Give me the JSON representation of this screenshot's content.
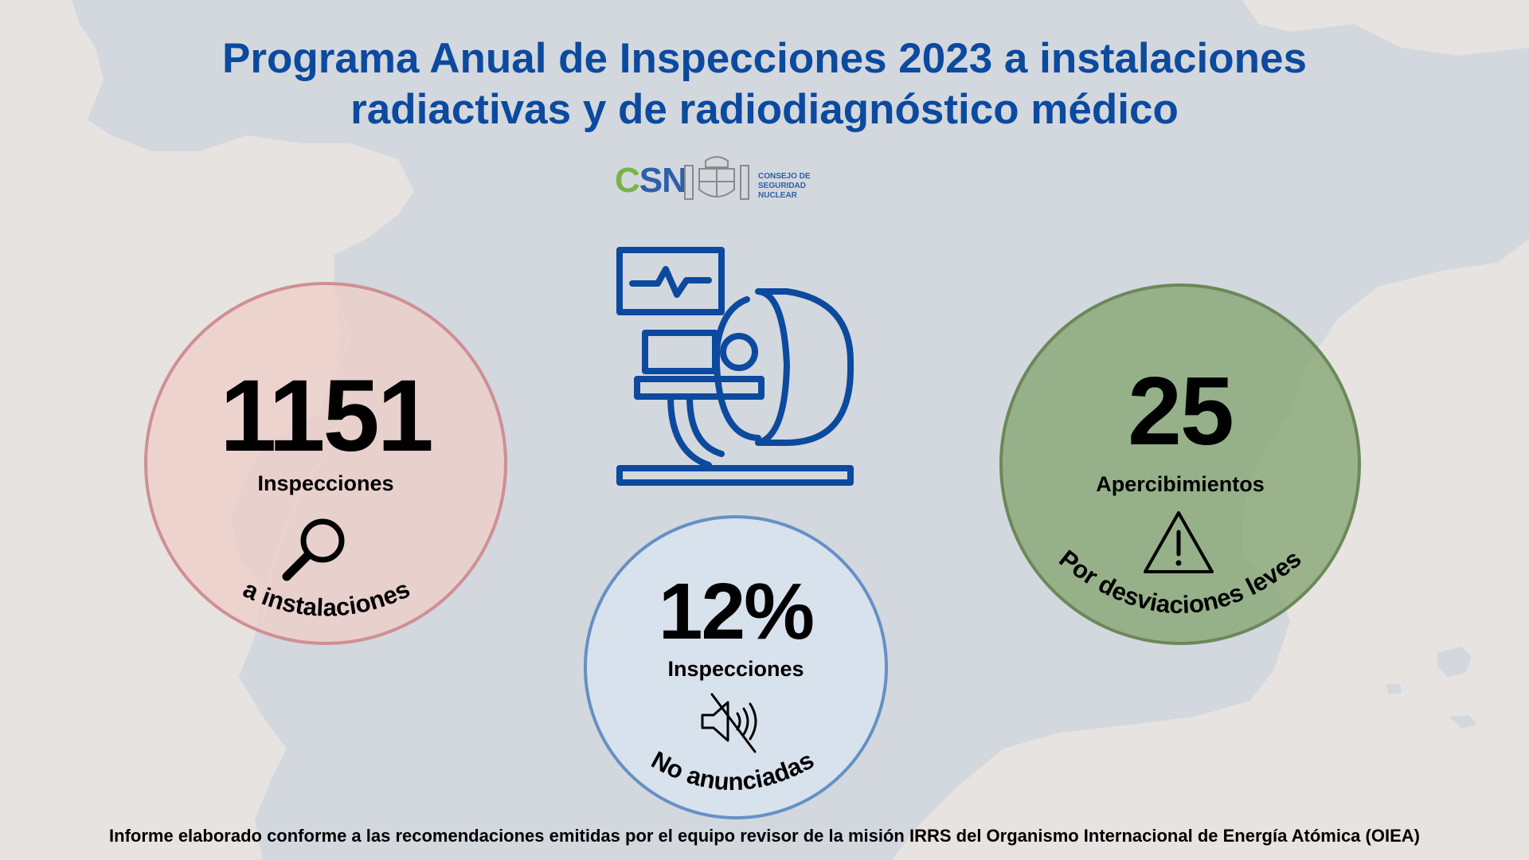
{
  "title": {
    "line1": "Programa Anual de Inspecciones 2023 a instalaciones",
    "line2": "radiactivas y de radiodiagnóstico médico"
  },
  "logo": {
    "abbr_c": "C",
    "abbr_sn": "SN",
    "text_line1": "CONSEJO DE",
    "text_line2": "SEGURIDAD NUCLEAR"
  },
  "stats": [
    {
      "value": "1151",
      "label": "Inspecciones",
      "arc_text": "a instalaciones",
      "icon": "magnifier-icon",
      "fill": "#f0cdc6",
      "border": "#cf8f95"
    },
    {
      "value": "12%",
      "label": "Inspecciones",
      "arc_text": "No anunciadas",
      "icon": "muted-speaker-icon",
      "fill": "#d8e4f0",
      "border": "#6690c4"
    },
    {
      "value": "25",
      "label": "Apercibimientos",
      "arc_text": "Por desviaciones leves",
      "icon": "warning-icon",
      "fill": "#89a878",
      "border": "#6c8859"
    }
  ],
  "center_icon": "medical-scanner-icon",
  "colors": {
    "title": "#0b4a9e",
    "icon_stroke": "#0b4a9e",
    "background": "#e6e3e1",
    "map_land": "#d3d7de"
  },
  "footer": "Informe elaborado conforme a las recomendaciones emitidas por el equipo revisor de la misión IRRS del Organismo Internacional de Energía Atómica (OIEA)"
}
